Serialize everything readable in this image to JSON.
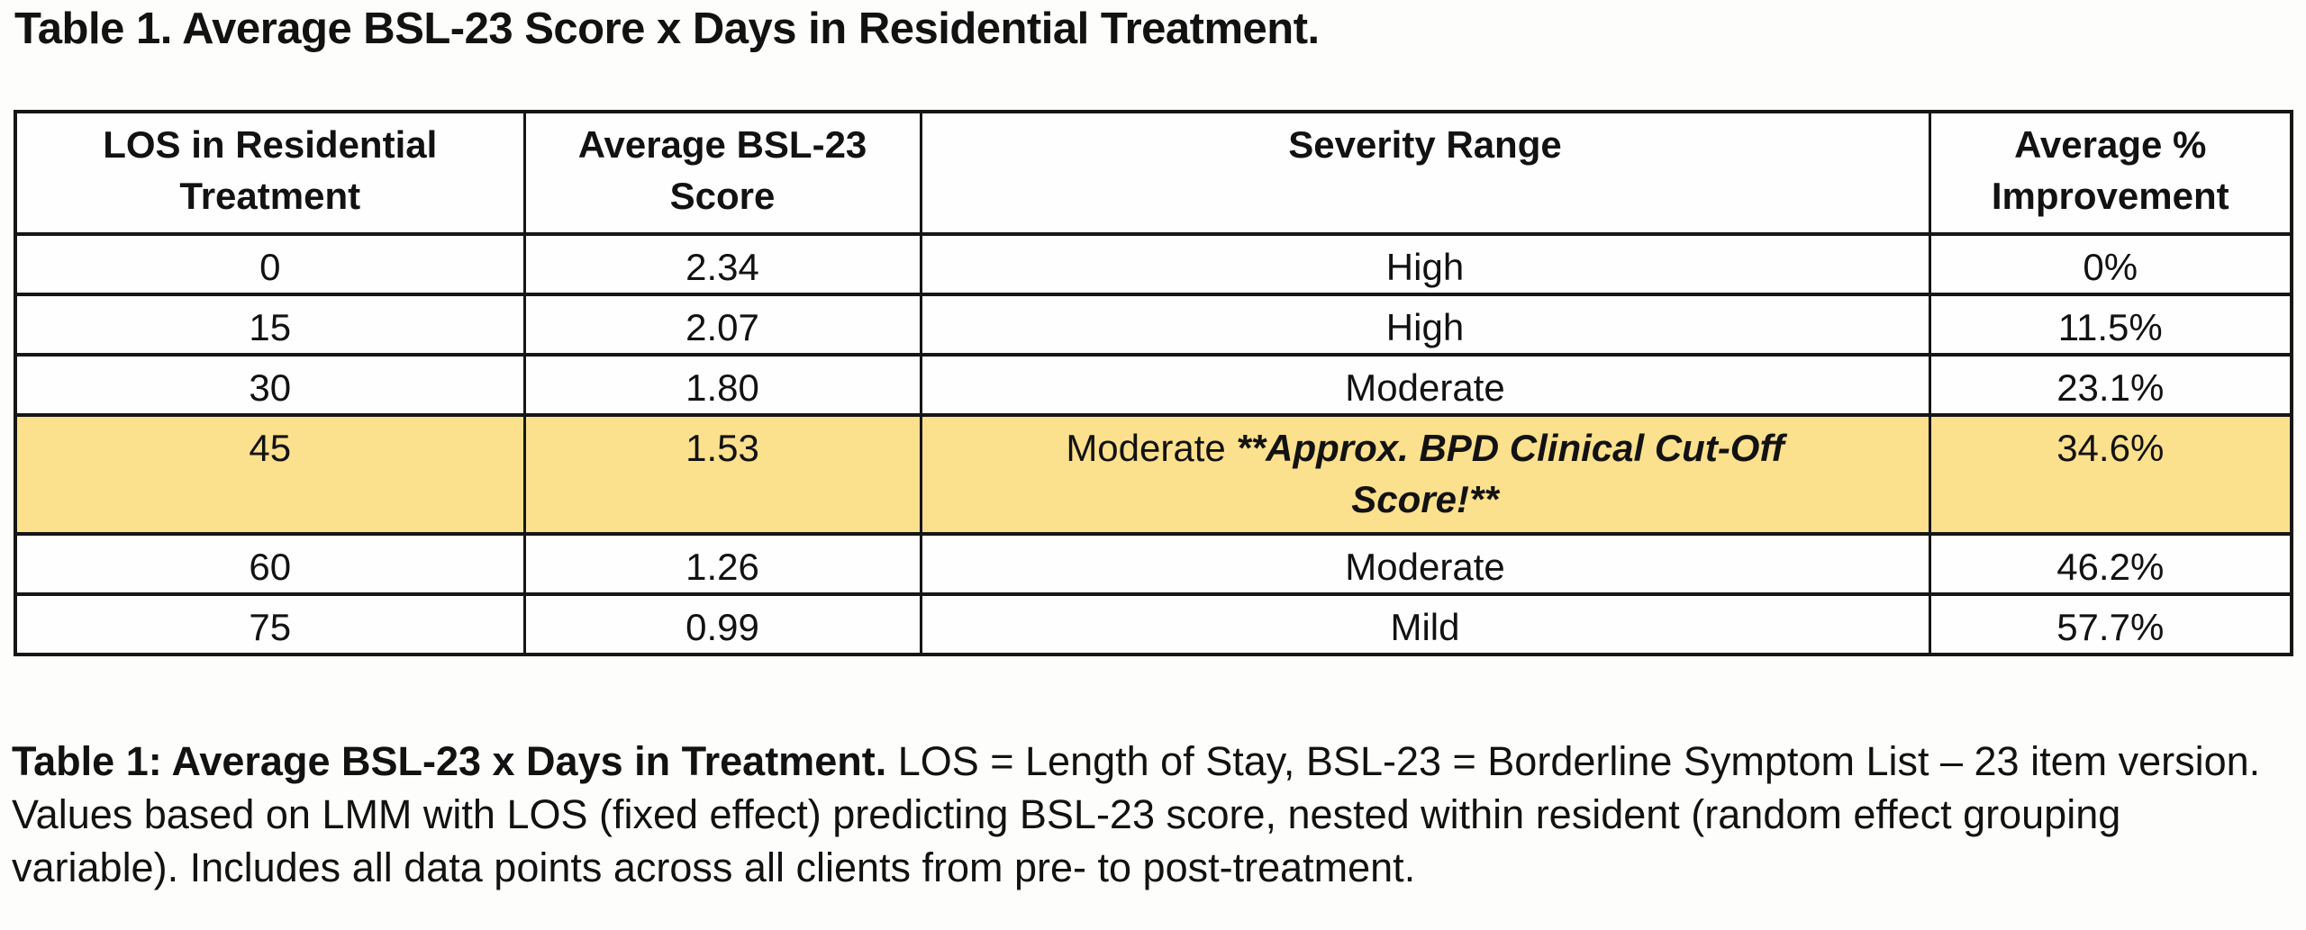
{
  "title": "Table 1. Average BSL-23 Score x Days in Residential Treatment.",
  "table": {
    "highlight_color": "#fbe08d",
    "border_color": "#161616",
    "headers": [
      "LOS in Residential Treatment",
      "Average BSL-23 Score",
      "Severity Range",
      "Average % Improvement"
    ],
    "rows": [
      {
        "los": "0",
        "score": "2.34",
        "severity": "High",
        "severity_note": "",
        "improvement": "0%",
        "highlighted": false
      },
      {
        "los": "15",
        "score": "2.07",
        "severity": "High",
        "severity_note": "",
        "improvement": "11.5%",
        "highlighted": false
      },
      {
        "los": "30",
        "score": "1.80",
        "severity": "Moderate",
        "severity_note": "",
        "improvement": "23.1%",
        "highlighted": false
      },
      {
        "los": "45",
        "score": "1.53",
        "severity": "Moderate ",
        "severity_note": "**Approx. BPD Clinical Cut-Off Score!**",
        "improvement": "34.6%",
        "highlighted": true
      },
      {
        "los": "60",
        "score": "1.26",
        "severity": "Moderate",
        "severity_note": "",
        "improvement": "46.2%",
        "highlighted": false
      },
      {
        "los": "75",
        "score": "0.99",
        "severity": "Mild",
        "severity_note": "",
        "improvement": "57.7%",
        "highlighted": false
      }
    ]
  },
  "caption": {
    "bold_lead": "Table 1: Average BSL-23 x Days in Treatment.",
    "body": " LOS = Length of Stay, BSL-23 = Borderline Symptom List – 23 item version. Values based on LMM with LOS (fixed effect) predicting BSL-23 score, nested within resident (random effect grouping variable). Includes all data points across all clients from pre- to post-treatment."
  }
}
